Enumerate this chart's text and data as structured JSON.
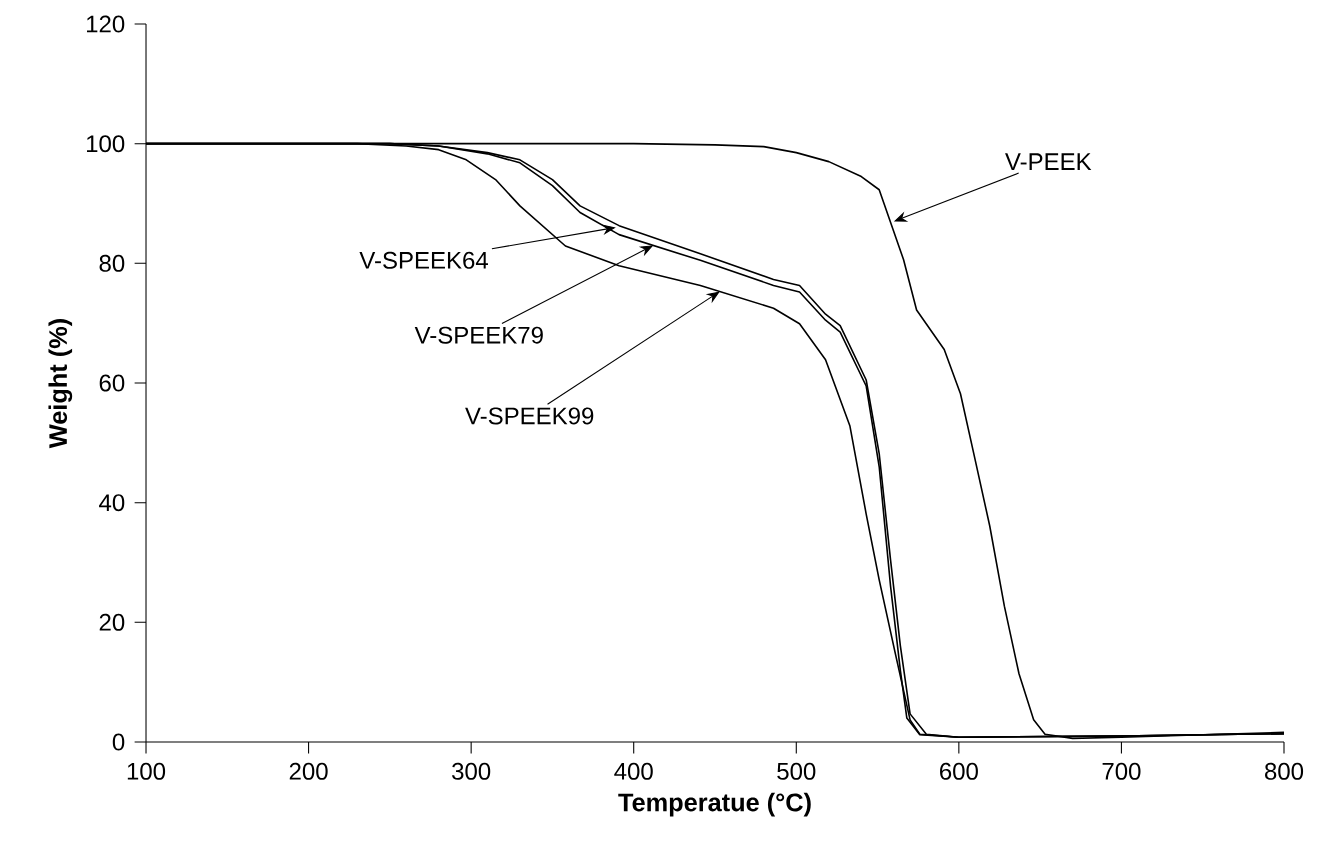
{
  "chart_data": {
    "type": "line",
    "xlabel": "Temperatue (°C)",
    "ylabel": "Weight (%)",
    "xlim": [
      100,
      800
    ],
    "ylim": [
      0,
      120
    ],
    "xticks": [
      100,
      200,
      300,
      400,
      500,
      600,
      700,
      800
    ],
    "yticks": [
      0,
      20,
      40,
      60,
      80,
      100,
      120
    ],
    "grid": false,
    "legend": false,
    "marker": "none",
    "line_style": "solid",
    "series": [
      {
        "color": "#000000",
        "x": [
          100,
          300,
          400,
          450,
          480,
          500,
          520,
          540,
          551,
          566,
          574,
          591,
          601,
          610,
          619,
          628,
          637,
          646,
          653,
          670,
          700,
          750,
          800
        ],
        "values": [
          100,
          100,
          100,
          99.8,
          99.5,
          98.5,
          97,
          94.5,
          92.3,
          80.6,
          72.2,
          65.6,
          58.2,
          47.2,
          36.1,
          22.7,
          11.4,
          3.7,
          1.3,
          0.6,
          0.8,
          1.2,
          1.6
        ]
      },
      {
        "color": "#000000",
        "x": [
          100,
          250,
          280,
          310,
          330,
          350,
          367,
          391,
          441,
          486,
          502,
          518,
          527,
          543,
          551,
          558,
          564,
          570,
          580,
          600,
          700,
          800
        ],
        "values": [
          100,
          100,
          99.6,
          98.5,
          97.3,
          94,
          89.6,
          86.3,
          81.6,
          77.3,
          76.3,
          71.5,
          69.6,
          60.5,
          48.2,
          30.4,
          16.1,
          4.7,
          1.3,
          0.8,
          1.0,
          1.4
        ]
      },
      {
        "color": "#000000",
        "x": [
          100,
          250,
          280,
          310,
          330,
          350,
          367,
          391,
          441,
          486,
          502,
          518,
          527,
          543,
          551,
          558,
          564,
          568,
          576,
          600,
          700,
          800
        ],
        "values": [
          100,
          100,
          99.6,
          98.3,
          96.8,
          93,
          88.5,
          84.8,
          80.5,
          76.3,
          75.2,
          70.5,
          68.5,
          59.5,
          46,
          26,
          12,
          4,
          1.2,
          0.8,
          1.0,
          1.4
        ]
      },
      {
        "color": "#000000",
        "x": [
          100,
          230,
          260,
          280,
          297,
          315,
          330,
          358,
          391,
          441,
          486,
          502,
          518,
          533,
          543,
          551,
          561,
          570,
          576,
          600,
          700,
          800
        ],
        "values": [
          100,
          100,
          99.6,
          99,
          97.3,
          94,
          89.6,
          82.9,
          79.6,
          76.3,
          72.5,
          69.9,
          63.9,
          52.8,
          38.1,
          27.1,
          14.7,
          3.7,
          1.3,
          0.8,
          1.0,
          1.4
        ]
      }
    ],
    "annotations": [
      {
        "text": "V-PEEK",
        "x": 560,
        "y": 87
      },
      {
        "text": "V-SPEEK64",
        "x": 389,
        "y": 86
      },
      {
        "text": "V-SPEEK79",
        "x": 412,
        "y": 83
      },
      {
        "text": "V-SPEEK99",
        "x": 453,
        "y": 75.3
      }
    ]
  }
}
